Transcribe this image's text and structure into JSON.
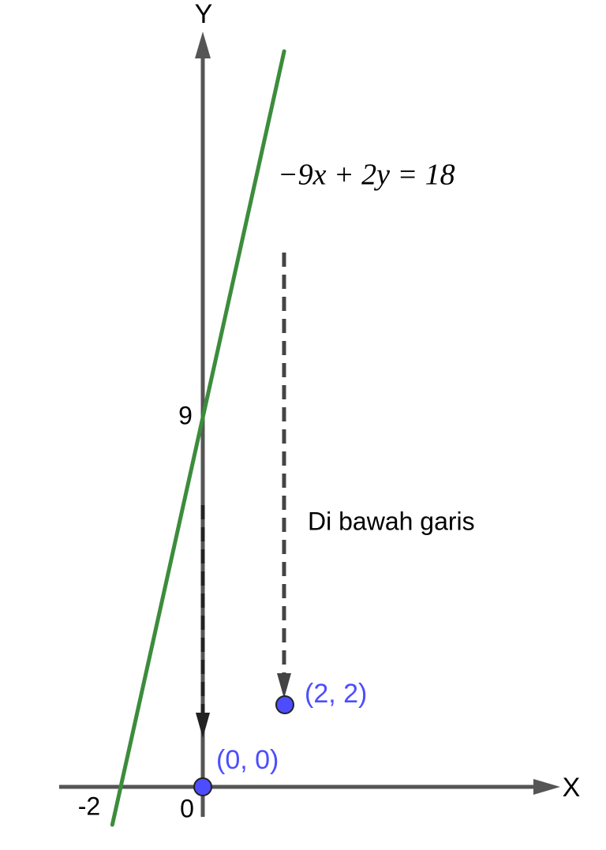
{
  "x_axis_label": "X",
  "y_axis_label": "Y",
  "origin_label": "0",
  "x_ticks": [
    {
      "value": -2,
      "label": "-2"
    }
  ],
  "y_ticks": [
    9
  ],
  "line": {
    "equation": "−9x + 2y = 18",
    "a": -9,
    "b": 2,
    "c": 18,
    "color": "#3c8c3c"
  },
  "points": [
    {
      "label": "(0, 0)",
      "x": 0,
      "y": 0
    },
    {
      "label": "(2, 2)",
      "x": 2,
      "y": 2
    }
  ],
  "point_color": "#4d4dff",
  "annotation": "Di bawah garis"
}
